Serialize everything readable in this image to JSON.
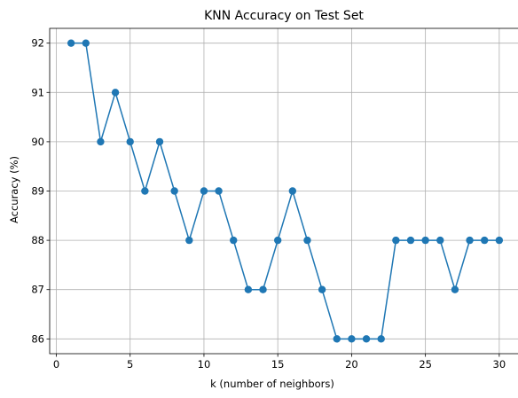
{
  "chart_data": {
    "type": "line",
    "title": "KNN Accuracy on Test Set",
    "xlabel": "k (number of neighbors)",
    "ylabel": "Accuracy (%)",
    "x": [
      1,
      2,
      3,
      4,
      5,
      6,
      7,
      8,
      9,
      10,
      11,
      12,
      13,
      14,
      15,
      16,
      17,
      18,
      19,
      20,
      21,
      22,
      23,
      24,
      25,
      26,
      27,
      28,
      29,
      30
    ],
    "series": [
      {
        "values": [
          92,
          92,
          90,
          91,
          90,
          89,
          90,
          89,
          88,
          89,
          89,
          88,
          87,
          87,
          88,
          89,
          88,
          87,
          86,
          86,
          86,
          86,
          88,
          88,
          88,
          88,
          87,
          88,
          88,
          88
        ],
        "color": "#1f77b4",
        "marker": "circle"
      }
    ],
    "xlim": [
      -0.45,
      31.45
    ],
    "ylim": [
      85.7,
      92.3
    ],
    "xticks": [
      0,
      5,
      10,
      15,
      20,
      25,
      30
    ],
    "yticks": [
      86,
      87,
      88,
      89,
      90,
      91,
      92
    ],
    "grid": true
  }
}
